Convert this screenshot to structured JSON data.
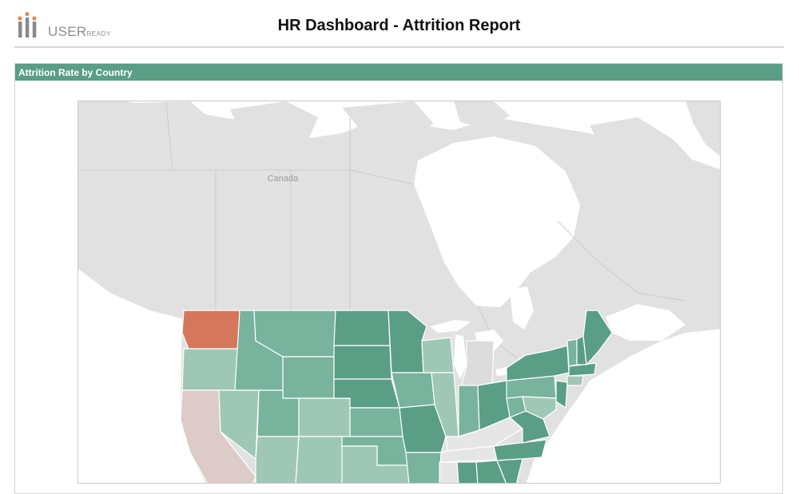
{
  "header": {
    "logo_text": "USER",
    "logo_small": "READY",
    "title": "HR Dashboard - Attrition Report"
  },
  "panel": {
    "title": "Attrition Rate by Country"
  },
  "map": {
    "country_label": "Canada",
    "colors": {
      "header_bar": "#5a9e86",
      "land": "#e1e1e1",
      "water": "#ffffff",
      "highest": "#d5775c",
      "low": "#dccbc8",
      "light_green": "#9fc7b5",
      "mid_green": "#78b39d",
      "dark_green": "#5a9e86",
      "neutral": "#e6e6e6"
    }
  }
}
